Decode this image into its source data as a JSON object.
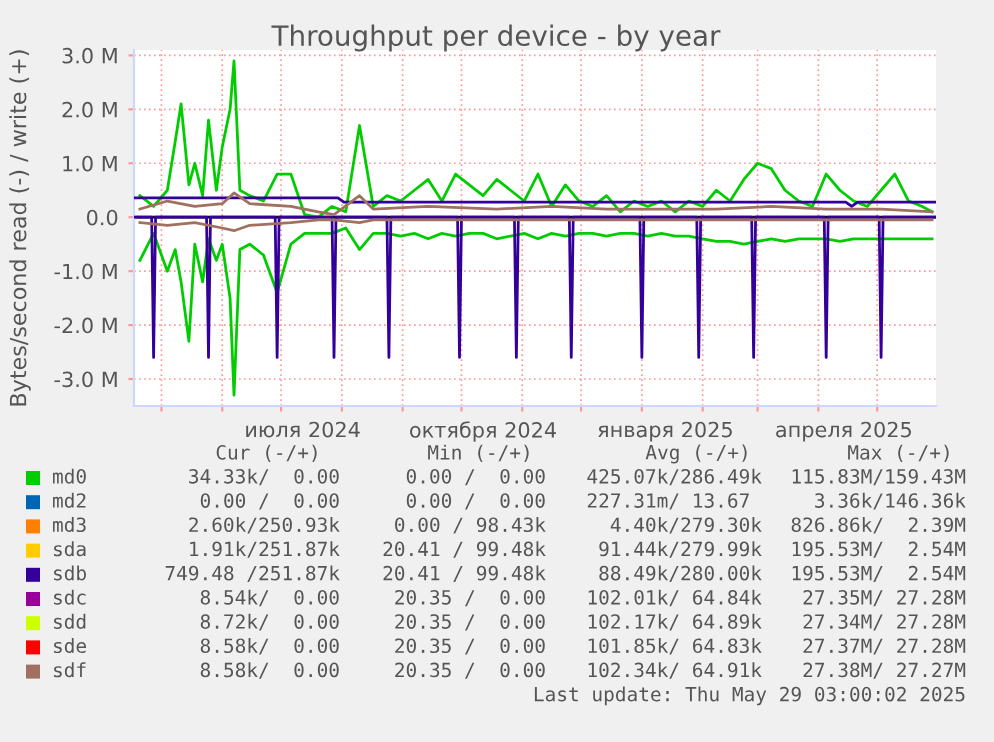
{
  "chart_data": {
    "type": "line",
    "title": "Throughput per device - by year",
    "ylabel": "Bytes/second read (-) / write (+)",
    "xlim": [
      "2024-04-17",
      "2025-05-31"
    ],
    "ylim": [
      -3500000,
      3100000
    ],
    "yticks": [
      {
        "value": -3000000,
        "label": "-3.0 M"
      },
      {
        "value": -2000000,
        "label": "-2.0 M"
      },
      {
        "value": -1000000,
        "label": "-1.0 M"
      },
      {
        "value": 0,
        "label": "0.0"
      },
      {
        "value": 1000000,
        "label": "1.0 M"
      },
      {
        "value": 2000000,
        "label": "2.0 M"
      },
      {
        "value": 3000000,
        "label": "3.0 M"
      }
    ],
    "xticks": [
      {
        "value": "2024-05-01",
        "label": null
      },
      {
        "value": "2024-06-01",
        "label": null
      },
      {
        "value": "2024-07-01",
        "label": null
      },
      {
        "value": "2024-08-01",
        "label": null
      },
      {
        "value": "2024-09-01",
        "label": null
      },
      {
        "value": "2024-10-01",
        "label": null
      },
      {
        "value": "2024-11-01",
        "label": null
      },
      {
        "value": "2024-12-01",
        "label": null
      },
      {
        "value": "2025-01-01",
        "label": null
      },
      {
        "value": "2025-02-01",
        "label": null
      },
      {
        "value": "2025-03-01",
        "label": null
      },
      {
        "value": "2025-04-01",
        "label": null
      },
      {
        "value": "2025-05-01",
        "label": null
      },
      {
        "value": "2024-07-12",
        "label": "июля 2024"
      },
      {
        "value": "2024-10-12",
        "label": "октября 2024"
      },
      {
        "value": "2025-01-13",
        "label": "января 2025"
      },
      {
        "value": "2025-04-14",
        "label": "апреля 2025"
      }
    ],
    "grid": true,
    "legend": "bottom",
    "marker": "none",
    "line_style": "solid",
    "ref_lines": [
      {
        "axis": "y",
        "value": 0,
        "color": "#000000"
      }
    ],
    "series": [
      {
        "name": "md0",
        "color": "#00cc00",
        "x": [
          "2024-04-20",
          "2024-04-27",
          "2024-05-04",
          "2024-05-08",
          "2024-05-11",
          "2024-05-15",
          "2024-05-18",
          "2024-05-22",
          "2024-05-25",
          "2024-05-29",
          "2024-06-01",
          "2024-06-05",
          "2024-06-07",
          "2024-06-10",
          "2024-06-15",
          "2024-06-22",
          "2024-06-29",
          "2024-07-06",
          "2024-07-13",
          "2024-07-20",
          "2024-07-27",
          "2024-08-03",
          "2024-08-10",
          "2024-08-17",
          "2024-08-24",
          "2024-08-31",
          "2024-09-07",
          "2024-09-14",
          "2024-09-21",
          "2024-09-28",
          "2024-10-05",
          "2024-10-12",
          "2024-10-19",
          "2024-10-26",
          "2024-11-02",
          "2024-11-09",
          "2024-11-16",
          "2024-11-23",
          "2024-11-30",
          "2024-12-07",
          "2024-12-14",
          "2024-12-21",
          "2024-12-28",
          "2025-01-04",
          "2025-01-11",
          "2025-01-18",
          "2025-01-25",
          "2025-02-01",
          "2025-02-08",
          "2025-02-15",
          "2025-02-22",
          "2025-03-01",
          "2025-03-08",
          "2025-03-15",
          "2025-03-22",
          "2025-03-29",
          "2025-04-05",
          "2025-04-12",
          "2025-04-19",
          "2025-04-26",
          "2025-05-03",
          "2025-05-10",
          "2025-05-17",
          "2025-05-24",
          "2025-05-29"
        ],
        "values": [
          400000,
          200000,
          500000,
          1400000,
          2100000,
          600000,
          1000000,
          400000,
          1800000,
          500000,
          1300000,
          2000000,
          2900000,
          500000,
          400000,
          300000,
          800000,
          800000,
          50000,
          0,
          200000,
          100000,
          1700000,
          200000,
          400000,
          300000,
          500000,
          700000,
          300000,
          800000,
          600000,
          400000,
          700000,
          500000,
          300000,
          800000,
          200000,
          600000,
          300000,
          200000,
          400000,
          100000,
          300000,
          200000,
          300000,
          100000,
          300000,
          200000,
          500000,
          300000,
          700000,
          1000000,
          900000,
          500000,
          300000,
          200000,
          800000,
          500000,
          300000,
          200000,
          500000,
          800000,
          300000,
          200000,
          100000
        ]
      },
      {
        "color": "#00cc00",
        "x": [
          "2024-04-20",
          "2024-04-27",
          "2024-05-04",
          "2024-05-08",
          "2024-05-11",
          "2024-05-15",
          "2024-05-18",
          "2024-05-22",
          "2024-05-25",
          "2024-05-29",
          "2024-06-01",
          "2024-06-05",
          "2024-06-07",
          "2024-06-10",
          "2024-06-15",
          "2024-06-22",
          "2024-06-29",
          "2024-07-06",
          "2024-07-13",
          "2024-07-20",
          "2024-07-27",
          "2024-08-03",
          "2024-08-10",
          "2024-08-17",
          "2024-08-24",
          "2024-08-31",
          "2024-09-07",
          "2024-09-14",
          "2024-09-21",
          "2024-09-28",
          "2024-10-05",
          "2024-10-12",
          "2024-10-19",
          "2024-10-26",
          "2024-11-02",
          "2024-11-09",
          "2024-11-16",
          "2024-11-23",
          "2024-11-30",
          "2024-12-07",
          "2024-12-14",
          "2024-12-21",
          "2024-12-28",
          "2025-01-04",
          "2025-01-11",
          "2025-01-18",
          "2025-01-25",
          "2025-02-01",
          "2025-02-08",
          "2025-02-15",
          "2025-02-22",
          "2025-03-01",
          "2025-03-08",
          "2025-03-15",
          "2025-03-22",
          "2025-03-29",
          "2025-04-05",
          "2025-04-12",
          "2025-04-19",
          "2025-04-26",
          "2025-05-03",
          "2025-05-10",
          "2025-05-17",
          "2025-05-24",
          "2025-05-29"
        ],
        "values": [
          -800000,
          -300000,
          -1000000,
          -600000,
          -1200000,
          -2300000,
          -500000,
          -1200000,
          -400000,
          -800000,
          -500000,
          -1500000,
          -3300000,
          -600000,
          -500000,
          -700000,
          -1400000,
          -500000,
          -300000,
          -300000,
          -300000,
          -200000,
          -600000,
          -300000,
          -300000,
          -350000,
          -300000,
          -400000,
          -300000,
          -350000,
          -300000,
          -300000,
          -400000,
          -350000,
          -300000,
          -400000,
          -300000,
          -350000,
          -300000,
          -300000,
          -350000,
          -300000,
          -300000,
          -350000,
          -300000,
          -350000,
          -350000,
          -400000,
          -450000,
          -450000,
          -500000,
          -450000,
          -400000,
          -450000,
          -400000,
          -400000,
          -400000,
          -450000,
          -400000,
          -400000,
          -400000,
          -400000,
          -400000,
          -400000,
          -400000
        ]
      },
      {
        "name": "md2",
        "color": "#0066b3"
      },
      {
        "name": "md3",
        "color": "#ff8000"
      },
      {
        "name": "sda",
        "color": "#ffcc00"
      },
      {
        "name": "sdb",
        "color": "#330099",
        "x": [
          "2024-04-17",
          "2024-07-30",
          "2024-08-02",
          "2025-04-15",
          "2025-04-18",
          "2025-04-21",
          "2025-05-31"
        ],
        "values": [
          360000,
          360000,
          280000,
          280000,
          200000,
          280000,
          280000
        ]
      },
      {
        "color": "#330099",
        "x": [
          "2024-04-17",
          "2024-04-26",
          "2024-04-27",
          "2024-04-28",
          "2024-05-24",
          "2024-05-25",
          "2024-05-26",
          "2024-06-28",
          "2024-06-29",
          "2024-06-30",
          "2024-07-27",
          "2024-07-28",
          "2024-07-29",
          "2024-08-24",
          "2024-08-25",
          "2024-08-26",
          "2024-09-29",
          "2024-09-30",
          "2024-10-01",
          "2024-10-28",
          "2024-10-29",
          "2024-10-30",
          "2024-11-25",
          "2024-11-26",
          "2024-11-27",
          "2024-12-31",
          "2025-01-01",
          "2025-01-02",
          "2025-01-29",
          "2025-01-30",
          "2025-01-31",
          "2025-02-26",
          "2025-02-27",
          "2025-02-28",
          "2025-04-04",
          "2025-04-05",
          "2025-04-06",
          "2025-05-02",
          "2025-05-03",
          "2025-05-04",
          "2025-05-31"
        ],
        "values": [
          0,
          0,
          -2600000,
          0,
          0,
          -2600000,
          0,
          0,
          -2600000,
          0,
          0,
          -2600000,
          0,
          0,
          -2600000,
          0,
          0,
          -2600000,
          0,
          0,
          -2600000,
          0,
          0,
          -2600000,
          0,
          0,
          -2600000,
          0,
          0,
          -2600000,
          0,
          0,
          -2600000,
          0,
          0,
          -2600000,
          0,
          0,
          -2600000,
          0,
          0
        ]
      },
      {
        "name": "sdc",
        "color": "#990099"
      },
      {
        "name": "sdd",
        "color": "#ccff00"
      },
      {
        "name": "sde",
        "color": "#ff0000"
      },
      {
        "name": "sdf",
        "color": "#a07060",
        "x": [
          "2024-04-20",
          "2024-05-04",
          "2024-05-18",
          "2024-06-01",
          "2024-06-07",
          "2024-06-15",
          "2024-07-06",
          "2024-07-20",
          "2024-07-28",
          "2024-08-10",
          "2024-08-17",
          "2024-09-14",
          "2024-10-19",
          "2024-11-16",
          "2024-12-14",
          "2025-01-11",
          "2025-02-08",
          "2025-03-08",
          "2025-04-05",
          "2025-05-03",
          "2025-05-29"
        ],
        "values": [
          150000,
          300000,
          200000,
          250000,
          450000,
          250000,
          200000,
          100000,
          50000,
          400000,
          150000,
          200000,
          150000,
          200000,
          150000,
          150000,
          150000,
          200000,
          150000,
          150000,
          100000
        ]
      },
      {
        "color": "#a07060",
        "x": [
          "2024-04-20",
          "2024-05-04",
          "2024-05-18",
          "2024-06-01",
          "2024-06-07",
          "2024-06-15",
          "2024-07-06",
          "2024-07-20",
          "2024-07-28",
          "2024-08-10",
          "2024-08-17",
          "2024-09-14",
          "2024-10-19",
          "2024-11-16",
          "2024-12-14",
          "2025-01-11",
          "2025-02-08",
          "2025-03-08",
          "2025-04-05",
          "2025-05-03",
          "2025-05-29"
        ],
        "values": [
          -100000,
          -150000,
          -100000,
          -200000,
          -250000,
          -150000,
          -100000,
          -50000,
          -50000,
          -100000,
          -50000,
          -50000,
          -50000,
          -50000,
          -50000,
          -50000,
          -50000,
          -50000,
          -50000,
          -50000,
          -50000
        ]
      }
    ],
    "annotations": [
      "Cur (-/+)",
      "Min (-/+)",
      "Avg (-/+)",
      "Max (-/+)",
      "34.33k/  0.00",
      "0.00 /  0.00",
      "425.07k/286.49k",
      "115.83M/159.43M",
      "0.00 /  0.00",
      "0.00 /  0.00",
      "227.31m/ 13.67 ",
      "3.36k/146.36k",
      "2.60k/250.93k",
      "0.00 / 98.43k",
      "4.40k/279.30k",
      "826.86k/  2.39M",
      "1.91k/251.87k",
      "20.41 / 99.48k",
      "91.44k/279.99k",
      "195.53M/  2.54M",
      "749.48 /251.87k",
      "20.41 / 99.48k",
      "88.49k/280.00k",
      "195.53M/  2.54M",
      "8.54k/  0.00",
      "20.35 /  0.00",
      "102.01k/ 64.84k",
      "27.35M/ 27.28M",
      "8.72k/  0.00",
      "20.35 /  0.00",
      "102.17k/ 64.89k",
      "27.34M/ 27.28M",
      "8.58k/  0.00",
      "20.35 /  0.00",
      "101.85k/ 64.83k",
      "27.37M/ 27.28M",
      "8.58k/  0.00",
      "20.35 /  0.00",
      "102.34k/ 64.91k",
      "27.38M/ 27.27M",
      "Last update: Thu May 29 03:00:02 2025"
    ]
  }
}
